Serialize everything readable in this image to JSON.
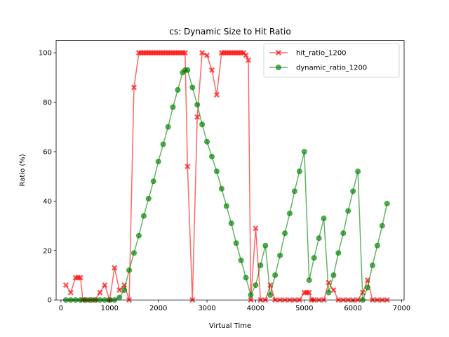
{
  "chart_data": {
    "type": "line",
    "title": "cs: Dynamic Size to Hit Ratio",
    "xlabel": "Virtual Time",
    "ylabel": "Ratio (%)",
    "xlim": [
      -100,
      7050
    ],
    "ylim": [
      0,
      105
    ],
    "xticks": [
      0,
      1000,
      2000,
      3000,
      4000,
      5000,
      6000,
      7000
    ],
    "yticks": [
      0,
      20,
      40,
      60,
      80,
      100
    ],
    "grid": false,
    "legend_placement": "top-right",
    "series": [
      {
        "name": "hit_ratio_1200",
        "color": "#ff0000",
        "marker": "x",
        "x": [
          100,
          200,
          300,
          350,
          400,
          450,
          500,
          600,
          700,
          800,
          900,
          1000,
          1100,
          1200,
          1300,
          1400,
          1500,
          1600,
          1650,
          1700,
          1750,
          1800,
          1850,
          1900,
          1950,
          2000,
          2050,
          2100,
          2150,
          2200,
          2250,
          2300,
          2350,
          2400,
          2450,
          2500,
          2550,
          2600,
          2700,
          2800,
          2900,
          3000,
          3100,
          3200,
          3300,
          3350,
          3400,
          3450,
          3500,
          3550,
          3600,
          3650,
          3700,
          3750,
          3800,
          3850,
          3900,
          4000,
          4100,
          4200,
          4300,
          4400,
          4500,
          4600,
          4700,
          4800,
          4900,
          5000,
          5050,
          5100,
          5150,
          5200,
          5300,
          5400,
          5500,
          5600,
          5700,
          5800,
          5900,
          6000,
          6100,
          6200,
          6300,
          6400,
          6500,
          6600,
          6700
        ],
        "y": [
          6,
          3,
          9,
          9,
          9,
          0,
          0,
          0,
          0,
          3,
          6,
          0,
          13,
          4,
          6,
          0,
          86,
          100,
          100,
          100,
          100,
          100,
          100,
          100,
          100,
          100,
          100,
          100,
          100,
          100,
          100,
          100,
          100,
          100,
          100,
          100,
          100,
          54,
          0,
          74,
          100,
          99,
          93,
          83,
          100,
          100,
          100,
          100,
          100,
          100,
          100,
          100,
          100,
          100,
          99,
          97,
          0,
          29,
          0,
          0,
          6,
          0,
          0,
          0,
          0,
          0,
          0,
          3,
          3,
          3,
          0,
          0,
          0,
          0,
          7,
          4,
          0,
          0,
          0,
          0,
          0,
          3,
          8,
          0,
          0,
          0,
          0
        ]
      },
      {
        "name": "dynamic_ratio_1200",
        "color": "#008000",
        "marker": "o",
        "x": [
          100,
          200,
          300,
          400,
          500,
          600,
          700,
          800,
          900,
          1000,
          1100,
          1200,
          1300,
          1400,
          1500,
          1600,
          1700,
          1800,
          1900,
          2000,
          2100,
          2200,
          2300,
          2400,
          2500,
          2550,
          2600,
          2700,
          2800,
          2900,
          3000,
          3100,
          3200,
          3300,
          3400,
          3500,
          3600,
          3700,
          3800,
          3900,
          4000,
          4100,
          4200,
          4300,
          4400,
          4500,
          4600,
          4700,
          4800,
          4900,
          5000,
          5100,
          5200,
          5300,
          5400,
          5500,
          5600,
          5700,
          5800,
          5900,
          6000,
          6100,
          6200,
          6300,
          6400,
          6500,
          6600,
          6700
        ],
        "y": [
          0,
          0,
          0,
          0,
          0,
          0,
          0,
          0,
          0,
          0,
          0,
          1,
          4,
          12,
          19,
          26,
          34,
          41,
          48,
          56,
          63,
          70,
          78,
          85,
          92,
          93,
          93,
          86,
          79,
          71,
          64,
          58,
          52,
          45,
          38,
          31,
          23,
          16,
          9,
          2,
          6,
          14,
          22,
          2,
          10,
          18,
          27,
          35,
          44,
          52,
          60,
          8,
          17,
          25,
          33,
          3,
          10,
          19,
          27,
          36,
          44,
          52,
          0,
          5,
          14,
          22,
          30,
          39
        ]
      }
    ]
  }
}
